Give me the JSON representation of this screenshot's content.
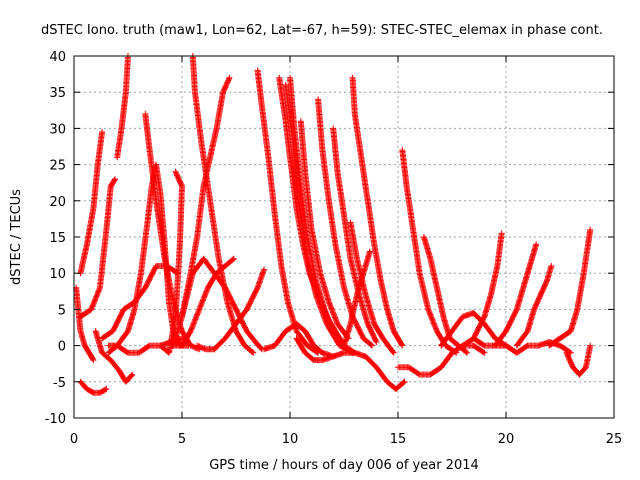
{
  "chart_data": {
    "type": "scatter",
    "title": "dSTEC Iono. truth (maw1, Lon=62, Lat=-67, h=59): STEC-STEC_elemax in phase cont.",
    "xlabel": "GPS time / hours of day 006 of year 2014",
    "ylabel": "dSTEC  / TECUs",
    "xlim": [
      0,
      25
    ],
    "ylim": [
      -10,
      40
    ],
    "xticks": [
      0,
      5,
      10,
      15,
      20,
      25
    ],
    "yticks": [
      -10,
      -5,
      0,
      5,
      10,
      15,
      20,
      25,
      30,
      35,
      40
    ],
    "grid": true,
    "marker": "plus",
    "color": "#ff0000",
    "series": [
      {
        "values": [
          [
            0.1,
            8
          ],
          [
            0.3,
            2
          ],
          [
            0.5,
            0
          ],
          [
            0.7,
            -1
          ],
          [
            0.9,
            -2
          ]
        ]
      },
      {
        "values": [
          [
            0.3,
            10
          ],
          [
            0.6,
            14
          ],
          [
            0.9,
            19
          ],
          [
            1.1,
            25
          ],
          [
            1.3,
            29.5
          ]
        ]
      },
      {
        "values": [
          [
            0.3,
            -5
          ],
          [
            0.6,
            -6
          ],
          [
            0.9,
            -6.5
          ],
          [
            1.2,
            -6.5
          ],
          [
            1.5,
            -6
          ]
        ]
      },
      {
        "values": [
          [
            0.3,
            4
          ],
          [
            0.8,
            5
          ],
          [
            1.2,
            8
          ],
          [
            1.5,
            16
          ],
          [
            1.7,
            22
          ],
          [
            1.9,
            23
          ]
        ]
      },
      {
        "values": [
          [
            1.0,
            2
          ],
          [
            1.3,
            -1
          ],
          [
            1.7,
            -2
          ],
          [
            2.1,
            -3.5
          ],
          [
            2.4,
            -5
          ],
          [
            2.7,
            -4
          ]
        ]
      },
      {
        "values": [
          [
            2.0,
            26
          ],
          [
            2.2,
            30
          ],
          [
            2.4,
            35
          ],
          [
            2.5,
            40
          ]
        ]
      },
      {
        "values": [
          [
            1.6,
            -1
          ],
          [
            2.0,
            0
          ],
          [
            2.5,
            2
          ],
          [
            2.8,
            5
          ],
          [
            3.1,
            10
          ],
          [
            3.4,
            17
          ],
          [
            3.6,
            22
          ],
          [
            3.8,
            25
          ],
          [
            4.0,
            21
          ],
          [
            4.2,
            14
          ],
          [
            4.4,
            6
          ],
          [
            4.6,
            2
          ],
          [
            4.9,
            0
          ],
          [
            5.3,
            0
          ]
        ]
      },
      {
        "values": [
          [
            3.3,
            32
          ],
          [
            3.5,
            27
          ],
          [
            3.8,
            20
          ],
          [
            4.2,
            12
          ],
          [
            4.6,
            6
          ],
          [
            5.0,
            2
          ],
          [
            5.4,
            0
          ],
          [
            5.8,
            -0.5
          ]
        ]
      },
      {
        "values": [
          [
            1.6,
            0
          ],
          [
            2.0,
            0
          ],
          [
            2.5,
            -1
          ],
          [
            3.0,
            -1
          ],
          [
            3.5,
            0
          ],
          [
            4.0,
            0
          ],
          [
            4.5,
            0.5
          ],
          [
            5.0,
            1
          ]
        ]
      },
      {
        "values": [
          [
            1.3,
            1
          ],
          [
            1.8,
            2
          ],
          [
            2.3,
            5
          ],
          [
            2.8,
            6
          ],
          [
            3.3,
            8
          ],
          [
            3.8,
            11
          ],
          [
            4.3,
            11
          ],
          [
            4.8,
            10
          ]
        ]
      },
      {
        "values": [
          [
            4.0,
            0
          ],
          [
            4.4,
            -1
          ],
          [
            4.7,
            4
          ],
          [
            4.9,
            14
          ],
          [
            5.0,
            22
          ],
          [
            4.7,
            24
          ]
        ]
      },
      {
        "values": [
          [
            4.6,
            0
          ],
          [
            5.0,
            4
          ],
          [
            5.4,
            10
          ],
          [
            5.7,
            15
          ],
          [
            6.0,
            22
          ],
          [
            6.3,
            26
          ],
          [
            6.6,
            30
          ],
          [
            6.9,
            35
          ],
          [
            7.2,
            37
          ]
        ]
      },
      {
        "values": [
          [
            5.5,
            40
          ],
          [
            5.6,
            35
          ],
          [
            5.9,
            28
          ],
          [
            6.3,
            20
          ],
          [
            6.7,
            12
          ],
          [
            7.1,
            6
          ],
          [
            7.5,
            2
          ],
          [
            7.9,
            0
          ],
          [
            8.3,
            -1
          ]
        ]
      },
      {
        "values": [
          [
            5.7,
            0
          ],
          [
            6.1,
            -0.5
          ],
          [
            6.5,
            -0.5
          ],
          [
            7.0,
            1
          ],
          [
            7.5,
            3
          ],
          [
            8.0,
            5
          ],
          [
            8.5,
            8
          ],
          [
            8.8,
            10.5
          ]
        ]
      },
      {
        "values": [
          [
            4.5,
            0
          ],
          [
            5.0,
            0
          ],
          [
            5.4,
            2
          ],
          [
            5.8,
            5
          ],
          [
            6.2,
            8
          ],
          [
            6.6,
            10
          ],
          [
            7.0,
            11
          ],
          [
            7.4,
            12
          ]
        ]
      },
      {
        "values": [
          [
            5.0,
            4
          ],
          [
            5.5,
            10
          ],
          [
            6.0,
            12
          ],
          [
            6.5,
            10
          ],
          [
            7.0,
            8
          ],
          [
            7.5,
            5
          ],
          [
            8.0,
            2
          ],
          [
            8.4,
            0.5
          ],
          [
            8.7,
            -0.5
          ]
        ]
      },
      {
        "values": [
          [
            8.5,
            38
          ],
          [
            8.7,
            33
          ],
          [
            9.0,
            26
          ],
          [
            9.3,
            18
          ],
          [
            9.6,
            11
          ],
          [
            9.9,
            6
          ],
          [
            10.3,
            2
          ],
          [
            10.8,
            0
          ],
          [
            11.3,
            -1
          ]
        ]
      },
      {
        "values": [
          [
            9.5,
            37
          ],
          [
            9.8,
            31
          ],
          [
            10.0,
            26
          ],
          [
            10.3,
            19
          ],
          [
            10.6,
            14
          ],
          [
            10.9,
            10
          ],
          [
            11.3,
            7
          ],
          [
            11.7,
            4
          ],
          [
            12.1,
            2
          ],
          [
            12.5,
            0
          ]
        ]
      },
      {
        "values": [
          [
            10.0,
            37
          ],
          [
            10.2,
            30
          ],
          [
            10.5,
            22
          ],
          [
            10.8,
            15
          ],
          [
            11.2,
            9
          ],
          [
            11.6,
            5
          ],
          [
            12.0,
            2
          ],
          [
            12.5,
            0
          ],
          [
            13.0,
            -1
          ]
        ]
      },
      {
        "values": [
          [
            9.8,
            36
          ],
          [
            10.1,
            29
          ],
          [
            10.4,
            20
          ],
          [
            10.8,
            12
          ],
          [
            11.2,
            7
          ],
          [
            11.7,
            3
          ],
          [
            12.3,
            0
          ],
          [
            12.9,
            -1
          ]
        ]
      },
      {
        "values": [
          [
            10.5,
            31
          ],
          [
            10.7,
            24
          ],
          [
            11.0,
            16
          ],
          [
            11.4,
            10
          ],
          [
            11.8,
            6
          ],
          [
            12.2,
            3
          ],
          [
            12.7,
            1
          ]
        ]
      },
      {
        "values": [
          [
            11.3,
            34
          ],
          [
            11.5,
            27
          ],
          [
            11.8,
            20
          ],
          [
            12.1,
            14
          ],
          [
            12.5,
            8
          ],
          [
            12.9,
            4
          ],
          [
            13.4,
            1
          ],
          [
            13.8,
            0
          ]
        ]
      },
      {
        "values": [
          [
            12.0,
            30
          ],
          [
            12.2,
            24
          ],
          [
            12.5,
            18
          ],
          [
            12.8,
            12
          ],
          [
            13.2,
            7
          ],
          [
            13.6,
            3
          ],
          [
            14.0,
            0.5
          ]
        ]
      },
      {
        "values": [
          [
            12.8,
            17
          ],
          [
            13.1,
            12
          ],
          [
            13.5,
            7
          ],
          [
            13.9,
            3
          ],
          [
            14.3,
            1
          ],
          [
            14.8,
            -1
          ]
        ]
      },
      {
        "values": [
          [
            12.9,
            37
          ],
          [
            13.0,
            32
          ],
          [
            13.3,
            26
          ],
          [
            13.6,
            20
          ],
          [
            13.9,
            14
          ],
          [
            14.2,
            9
          ],
          [
            14.5,
            5
          ],
          [
            14.8,
            2
          ],
          [
            15.2,
            0
          ]
        ]
      },
      {
        "values": [
          [
            8.8,
            -0.5
          ],
          [
            9.3,
            0
          ],
          [
            9.8,
            2
          ],
          [
            10.3,
            3
          ],
          [
            10.7,
            2
          ],
          [
            11.1,
            0
          ],
          [
            11.5,
            -1
          ],
          [
            12.0,
            -1.5
          ]
        ]
      },
      {
        "values": [
          [
            10.3,
            1
          ],
          [
            10.7,
            -1
          ],
          [
            11.1,
            -2
          ],
          [
            11.5,
            -2
          ],
          [
            12.0,
            -1.5
          ],
          [
            12.5,
            -1
          ],
          [
            13.0,
            -1
          ],
          [
            13.5,
            -1.5
          ],
          [
            14.0,
            -3
          ],
          [
            14.5,
            -5
          ],
          [
            14.9,
            -6
          ],
          [
            15.3,
            -5
          ]
        ]
      },
      {
        "values": [
          [
            12.5,
            0
          ],
          [
            12.8,
            3
          ],
          [
            13.1,
            7
          ],
          [
            13.4,
            10
          ],
          [
            13.7,
            13
          ]
        ]
      },
      {
        "values": [
          [
            15.2,
            27
          ],
          [
            15.4,
            22
          ],
          [
            15.7,
            16
          ],
          [
            16.0,
            10
          ],
          [
            16.4,
            5
          ],
          [
            16.8,
            2
          ],
          [
            17.2,
            0
          ],
          [
            17.7,
            -1
          ]
        ]
      },
      {
        "values": [
          [
            15.0,
            -3
          ],
          [
            15.5,
            -3
          ],
          [
            16.0,
            -4
          ],
          [
            16.5,
            -4
          ],
          [
            17.0,
            -3
          ],
          [
            17.5,
            -1
          ],
          [
            18.0,
            0
          ],
          [
            18.5,
            0
          ],
          [
            19.0,
            -1
          ]
        ]
      },
      {
        "values": [
          [
            16.2,
            15
          ],
          [
            16.5,
            12
          ],
          [
            16.8,
            8
          ],
          [
            17.1,
            4
          ],
          [
            17.4,
            1
          ],
          [
            17.8,
            0
          ],
          [
            18.2,
            -1
          ]
        ]
      },
      {
        "values": [
          [
            17.0,
            0
          ],
          [
            17.5,
            2
          ],
          [
            18.0,
            4
          ],
          [
            18.5,
            4.5
          ],
          [
            19.0,
            3
          ],
          [
            19.5,
            1
          ],
          [
            20.0,
            0
          ]
        ]
      },
      {
        "values": [
          [
            18.0,
            0
          ],
          [
            18.5,
            1
          ],
          [
            19.0,
            4
          ],
          [
            19.3,
            7
          ],
          [
            19.6,
            11
          ],
          [
            19.8,
            15.5
          ]
        ]
      },
      {
        "values": [
          [
            18.5,
            1
          ],
          [
            19.0,
            0
          ],
          [
            19.5,
            0
          ],
          [
            20.0,
            0
          ],
          [
            20.5,
            -1
          ],
          [
            21.0,
            0
          ],
          [
            21.5,
            0
          ],
          [
            22.0,
            0.5
          ],
          [
            22.5,
            0
          ],
          [
            23.0,
            -1
          ]
        ]
      },
      {
        "values": [
          [
            19.5,
            0
          ],
          [
            20.0,
            2
          ],
          [
            20.5,
            5
          ],
          [
            20.8,
            8
          ],
          [
            21.1,
            11
          ],
          [
            21.4,
            14
          ]
        ]
      },
      {
        "values": [
          [
            20.5,
            0
          ],
          [
            21.0,
            2
          ],
          [
            21.3,
            5
          ],
          [
            21.6,
            7
          ],
          [
            21.9,
            9
          ],
          [
            22.1,
            11
          ]
        ]
      },
      {
        "values": [
          [
            22.0,
            0
          ],
          [
            22.5,
            1
          ],
          [
            23.0,
            2
          ],
          [
            23.3,
            5
          ],
          [
            23.6,
            10
          ],
          [
            23.8,
            14
          ],
          [
            23.9,
            16
          ]
        ]
      },
      {
        "values": [
          [
            22.8,
            -1
          ],
          [
            23.1,
            -3
          ],
          [
            23.4,
            -4
          ],
          [
            23.7,
            -3
          ],
          [
            23.9,
            0
          ]
        ]
      }
    ]
  }
}
